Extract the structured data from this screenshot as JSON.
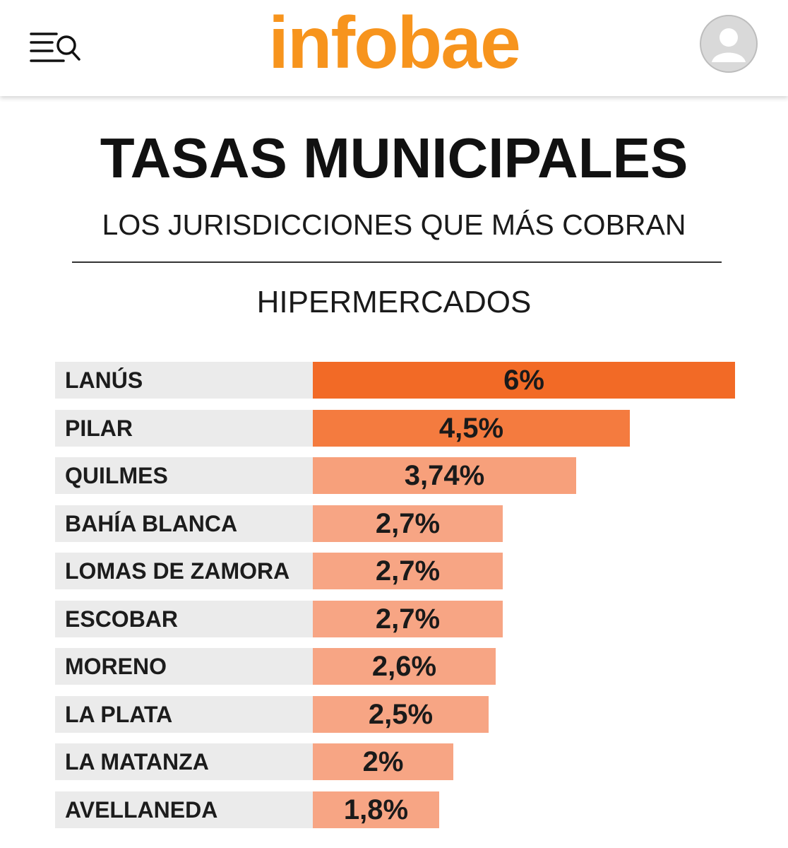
{
  "header": {
    "brand": "infobae",
    "brand_color": "#f7941d",
    "menu_icon": "menu-search-icon",
    "account_icon": "user-avatar-icon"
  },
  "chart_data": {
    "type": "bar",
    "orientation": "horizontal",
    "title": "TASAS MUNICIPALES",
    "subtitle": "LOS JURISDICCIONES QUE MÁS COBRAN",
    "category_label": "HIPERMERCADOS",
    "categories": [
      "LANÚS",
      "PILAR",
      "QUILMES",
      "BAHÍA BLANCA",
      "LOMAS DE ZAMORA",
      "ESCOBAR",
      "MORENO",
      "LA PLATA",
      "LA MATANZA",
      "AVELLANEDA"
    ],
    "values": [
      6,
      4.5,
      3.74,
      2.7,
      2.7,
      2.7,
      2.6,
      2.5,
      2,
      1.8
    ],
    "value_labels": [
      "6%",
      "4,5%",
      "3,74%",
      "2,7%",
      "2,7%",
      "2,7%",
      "2,6%",
      "2,5%",
      "2%",
      "1,8%"
    ],
    "bar_colors": [
      "#f26a26",
      "#f47b3f",
      "#f7a07b",
      "#f7a584",
      "#f7a584",
      "#f7a584",
      "#f7a584",
      "#f7a584",
      "#f7a584",
      "#f7a584"
    ],
    "grid": false,
    "legend": "none"
  }
}
